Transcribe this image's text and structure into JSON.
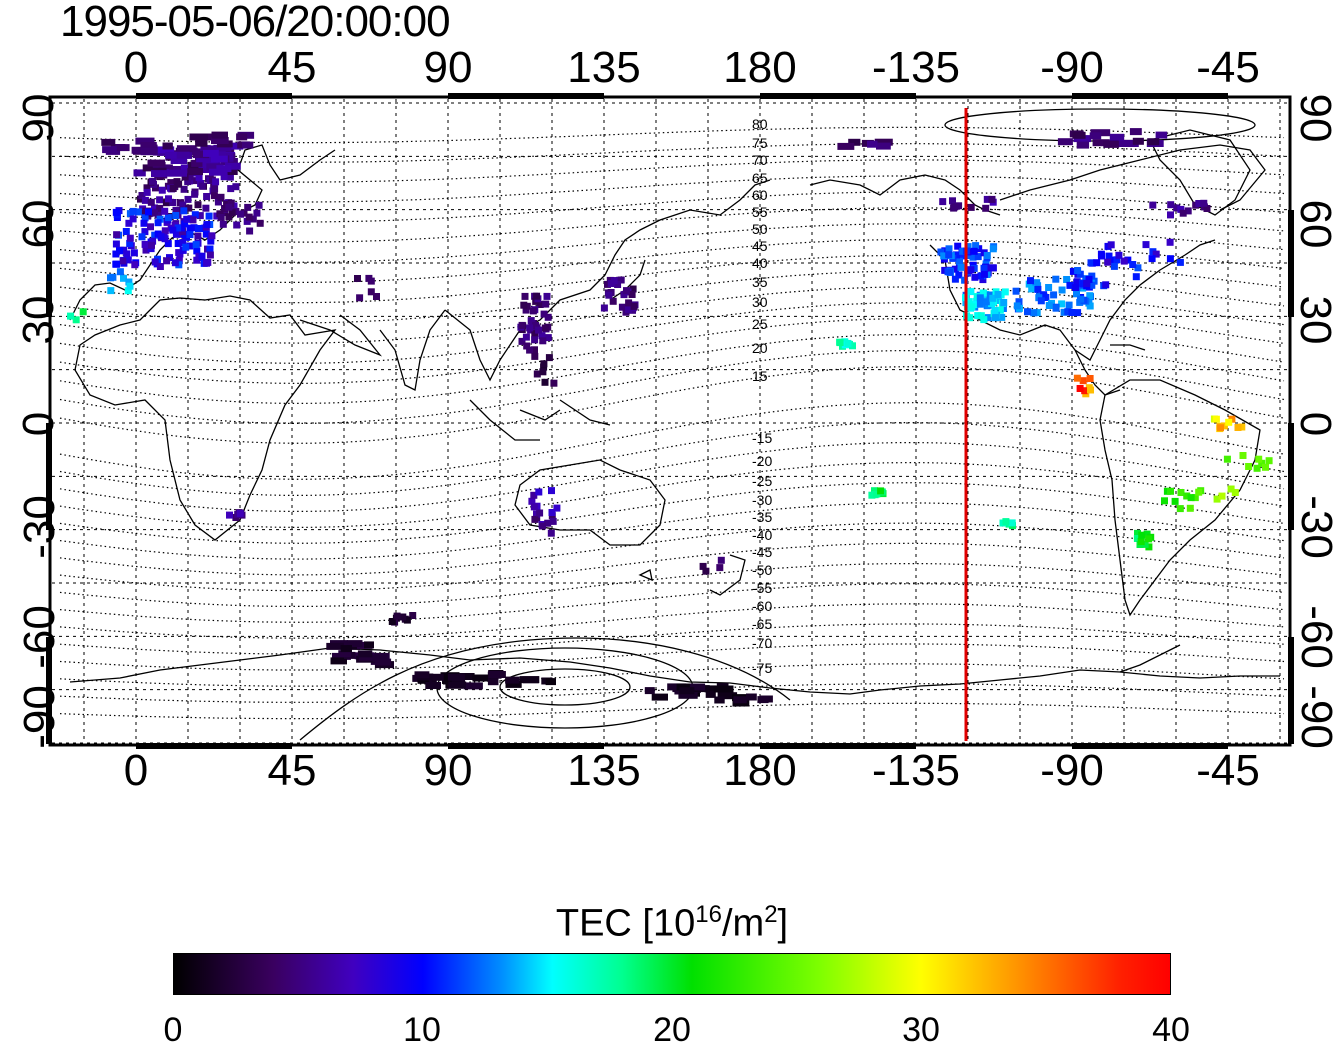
{
  "title": "1995-05-06/20:00:00",
  "map": {
    "lon_ticks": [
      "0",
      "45",
      "90",
      "135",
      "180",
      "-135",
      "-90",
      "-45"
    ],
    "lat_ticks": [
      "90",
      "60",
      "30",
      "0",
      "-30",
      "-60",
      "-90"
    ],
    "dip_labels_north": [
      "80",
      "75",
      "70",
      "65",
      "60",
      "55",
      "50",
      "45",
      "40",
      "35",
      "30",
      "25",
      "20",
      "15"
    ],
    "dip_labels_south": [
      "-15",
      "-20",
      "-25",
      "-30",
      "-35",
      "-40",
      "-45",
      "-50",
      "-55",
      "-60",
      "-65",
      "-70",
      "-75"
    ],
    "terminator_color": "#e00000",
    "terminator_lon": -120
  },
  "colorbar": {
    "title_prefix": "TEC  [10",
    "title_sup": "16",
    "title_mid": "/m",
    "title_sup2": "2",
    "title_suffix": "]",
    "ticks": [
      "0",
      "10",
      "20",
      "30",
      "40"
    ],
    "min": 0,
    "max": 40
  }
}
